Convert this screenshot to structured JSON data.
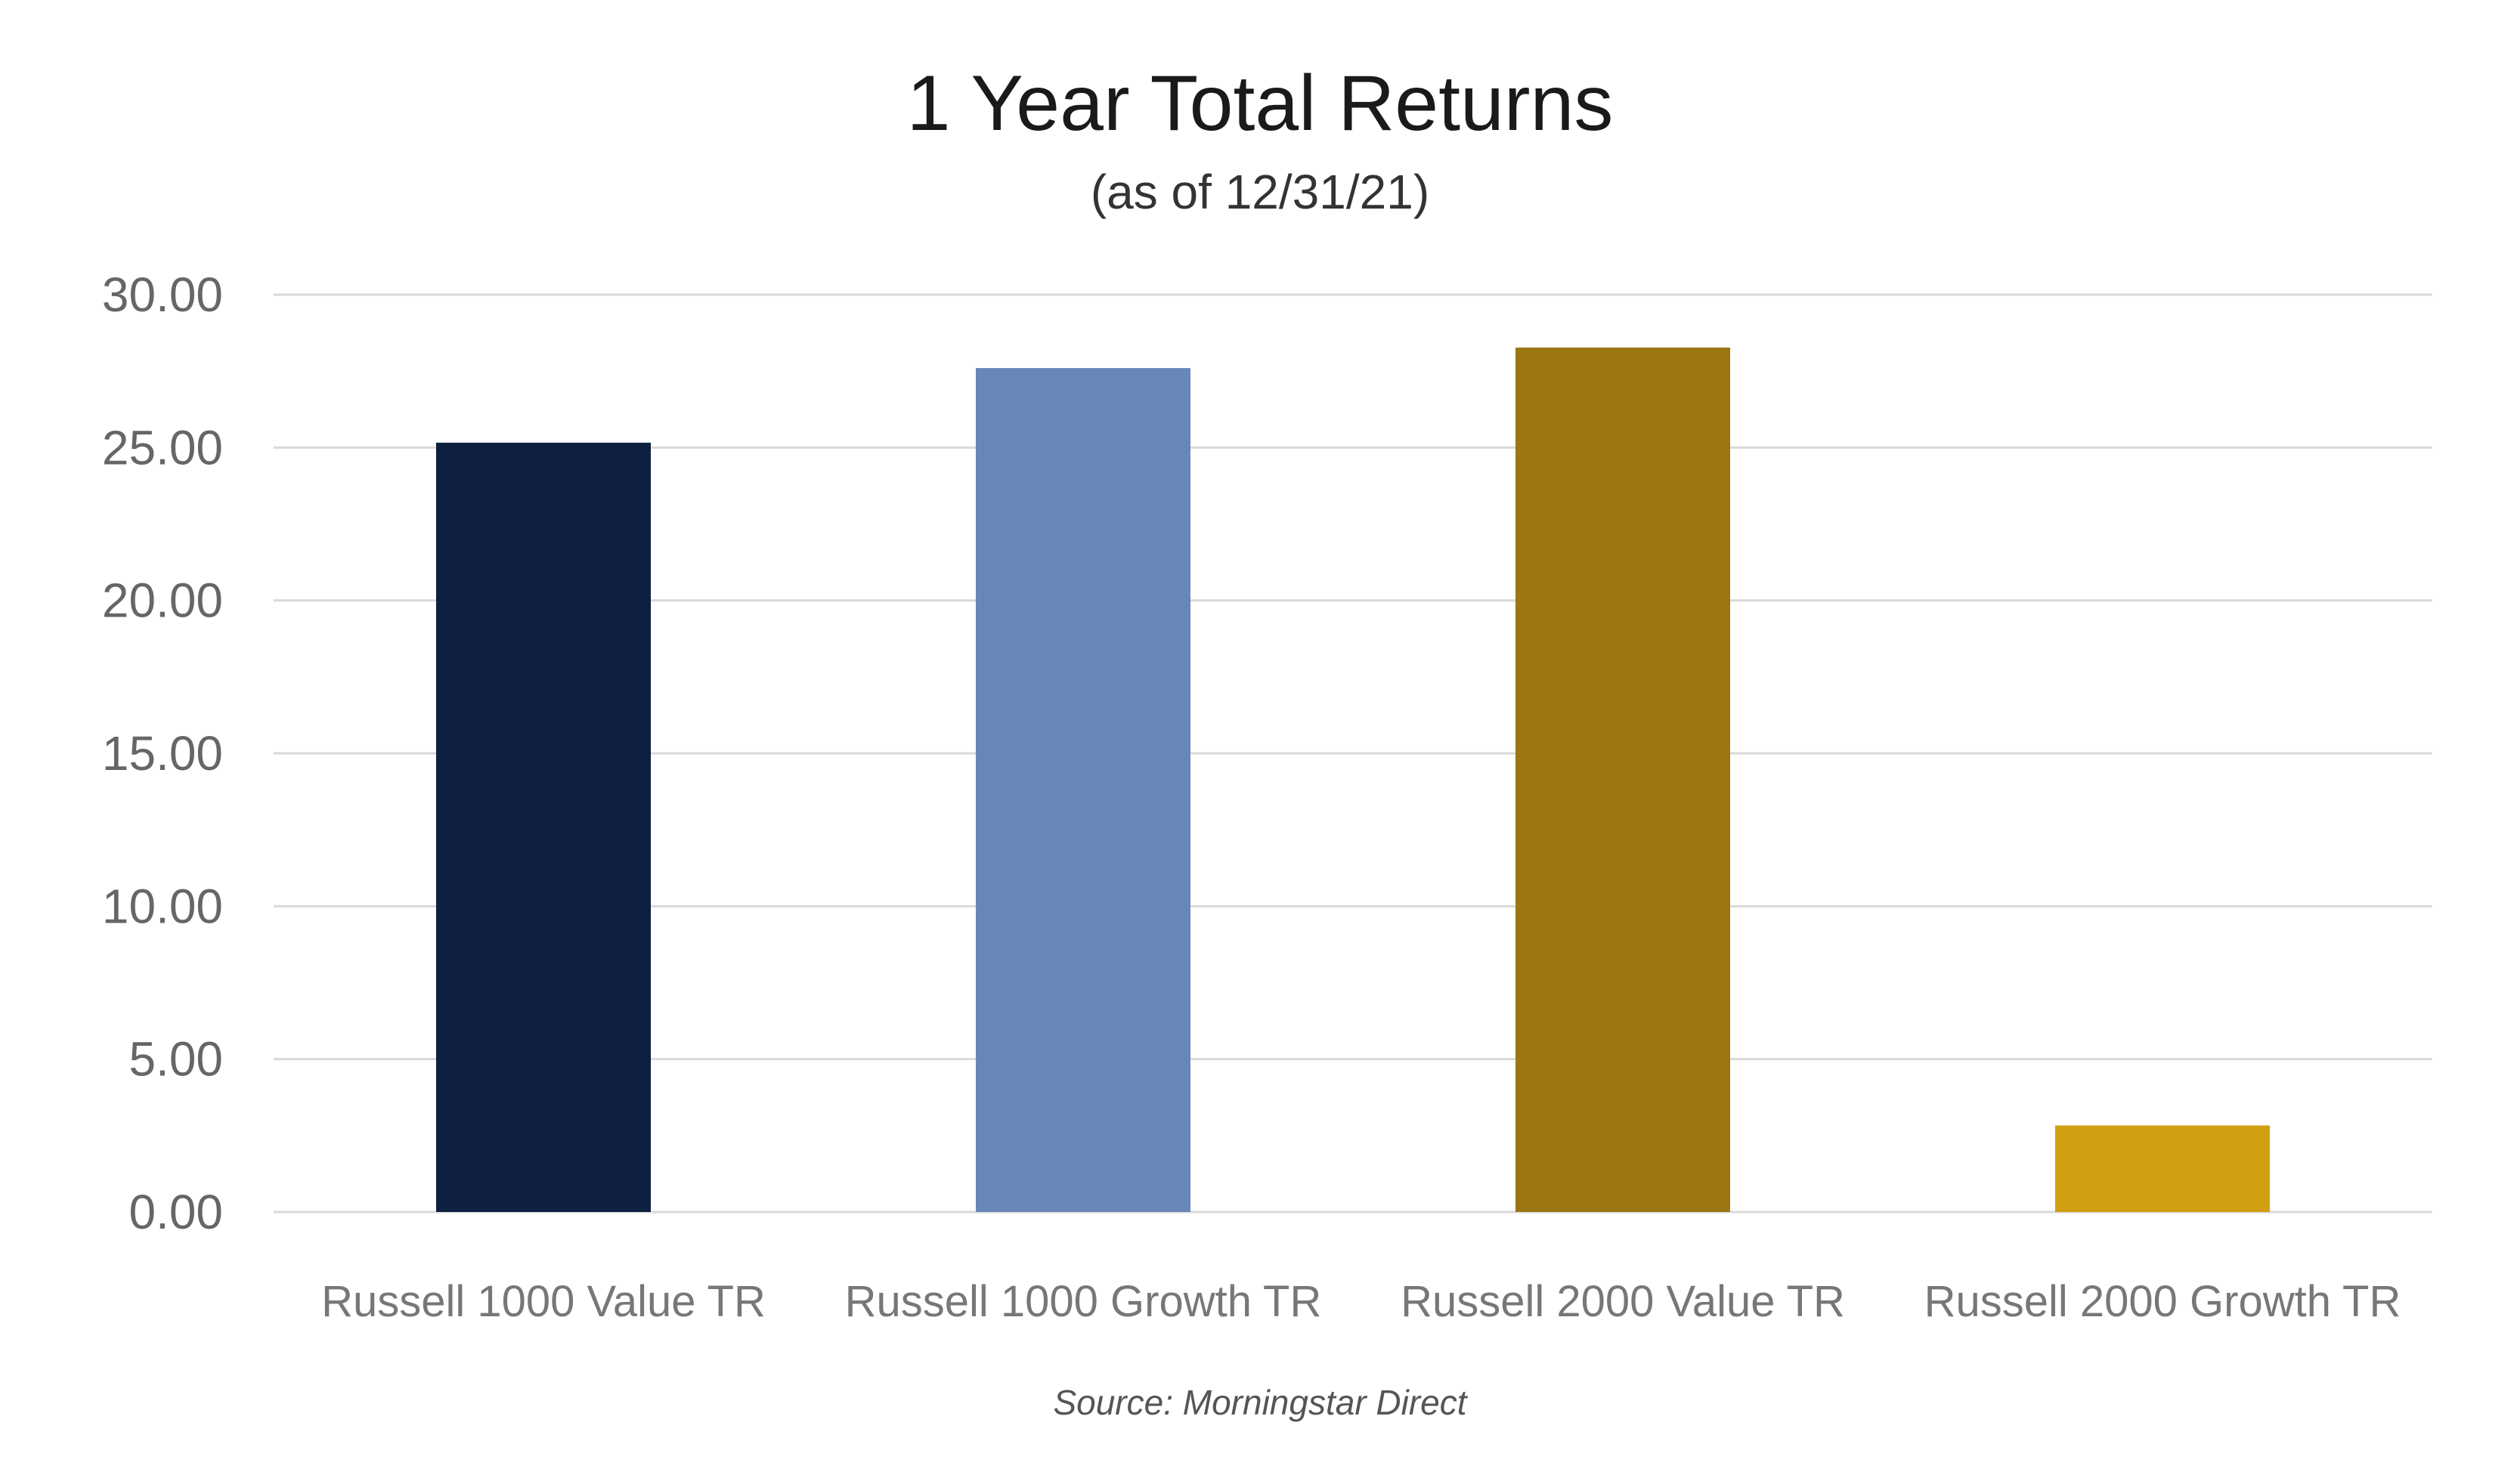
{
  "chart_data": {
    "type": "bar",
    "title": "1 Year Total Returns",
    "subtitle": "(as of 12/31/21)",
    "source": "Source: Morningstar Direct",
    "categories": [
      "Russell 1000 Value TR",
      "Russell 1000 Growth TR",
      "Russell 2000 Value TR",
      "Russell 2000 Growth TR"
    ],
    "values": [
      25.16,
      27.6,
      28.27,
      2.83
    ],
    "colors": [
      "#0e1f40",
      "#6886b7",
      "#9b7611",
      "#d29e12"
    ],
    "gridline_color": "#d9d9d9",
    "ylim": [
      0,
      30
    ],
    "yticks": [
      "0.00",
      "5.00",
      "10.00",
      "15.00",
      "20.00",
      "25.00",
      "30.00"
    ],
    "ytick_values": [
      0,
      5,
      10,
      15,
      20,
      25,
      30
    ],
    "grid": true,
    "legend": "none"
  }
}
